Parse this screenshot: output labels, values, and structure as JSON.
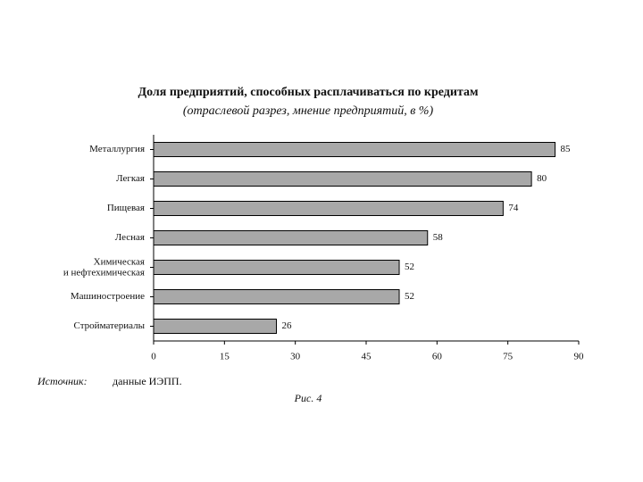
{
  "chart_data": {
    "type": "bar",
    "orientation": "horizontal",
    "title": "Доля предприятий, способных расплачиваться по кредитам",
    "subtitle": "(отраслевой разрез, мнение предприятий, в %)",
    "categories": [
      "Металлургия",
      "Легкая",
      "Пищевая",
      "Лесная",
      "Химическая\nи нефтехимическая",
      "Машиностроение",
      "Стройматериалы"
    ],
    "values": [
      85,
      80,
      74,
      58,
      52,
      52,
      26
    ],
    "color": "#a8a8a8",
    "xlim": [
      0,
      90
    ],
    "xticks": [
      0,
      15,
      30,
      45,
      60,
      75,
      90
    ],
    "source_label": "Источник:",
    "source_text": "данные ИЭПП.",
    "caption": "Рис. 4"
  }
}
